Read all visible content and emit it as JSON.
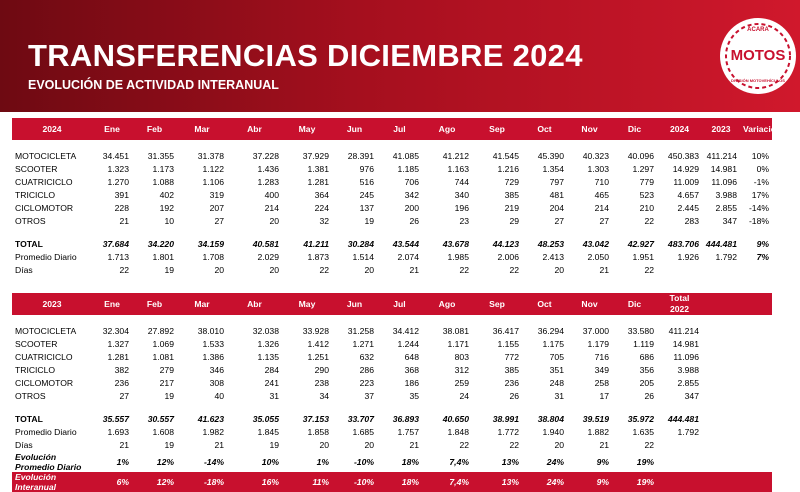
{
  "header": {
    "title": "TRANSFERENCIAS DICIEMBRE 2024",
    "subtitle": "EVOLUCIÓN DE ACTIVIDAD INTERANUAL"
  },
  "logo": {
    "top": "ACARA",
    "main": "MOTOS",
    "bottom": "DIVISIÓN MOTOVEHÍCULOS"
  },
  "table_2024": {
    "header": [
      "2024",
      "Ene",
      "Feb",
      "Mar",
      "Abr",
      "May",
      "Jun",
      "Jul",
      "Ago",
      "Sep",
      "Oct",
      "Nov",
      "Dic",
      "2024",
      "2023",
      "Variación"
    ],
    "rows": [
      [
        "MOTOCICLETA",
        "34.451",
        "31.355",
        "31.378",
        "37.228",
        "37.929",
        "28.391",
        "41.085",
        "41.212",
        "41.545",
        "45.390",
        "40.323",
        "40.096",
        "450.383",
        "411.214",
        "10%"
      ],
      [
        "SCOOTER",
        "1.323",
        "1.173",
        "1.122",
        "1.436",
        "1.381",
        "976",
        "1.185",
        "1.163",
        "1.216",
        "1.354",
        "1.303",
        "1.297",
        "14.929",
        "14.981",
        "0%"
      ],
      [
        "CUATRICICLO",
        "1.270",
        "1.088",
        "1.106",
        "1.283",
        "1.281",
        "516",
        "706",
        "744",
        "729",
        "797",
        "710",
        "779",
        "11.009",
        "11.096",
        "-1%"
      ],
      [
        "TRICICLO",
        "391",
        "402",
        "319",
        "400",
        "364",
        "245",
        "342",
        "340",
        "385",
        "481",
        "465",
        "523",
        "4.657",
        "3.988",
        "17%"
      ],
      [
        "CICLOMOTOR",
        "228",
        "192",
        "207",
        "214",
        "224",
        "137",
        "200",
        "196",
        "219",
        "204",
        "214",
        "210",
        "2.445",
        "2.855",
        "-14%"
      ],
      [
        "OTROS",
        "21",
        "10",
        "27",
        "20",
        "32",
        "19",
        "26",
        "23",
        "29",
        "27",
        "27",
        "22",
        "283",
        "347",
        "-18%"
      ],
      [
        "TOTAL",
        "37.684",
        "34.220",
        "34.159",
        "40.581",
        "41.211",
        "30.284",
        "43.544",
        "43.678",
        "44.123",
        "48.253",
        "43.042",
        "42.927",
        "483.706",
        "444.481",
        "9%"
      ],
      [
        "Promedio Diario",
        "1.713",
        "1.801",
        "1.708",
        "2.029",
        "1.873",
        "1.514",
        "2.074",
        "1.985",
        "2.006",
        "2.413",
        "2.050",
        "1.951",
        "1.926",
        "1.792",
        "7%"
      ],
      [
        "Días",
        "22",
        "19",
        "20",
        "20",
        "22",
        "20",
        "21",
        "22",
        "22",
        "20",
        "21",
        "22"
      ]
    ]
  },
  "table_2023": {
    "header": [
      "2023",
      "Ene",
      "Feb",
      "Mar",
      "Abr",
      "May",
      "Jun",
      "Jul",
      "Ago",
      "Sep",
      "Oct",
      "Nov",
      "Dic",
      "Total 2022"
    ],
    "rows": [
      [
        "MOTOCICLETA",
        "32.304",
        "27.892",
        "38.010",
        "32.038",
        "33.928",
        "31.258",
        "34.412",
        "38.081",
        "36.417",
        "36.294",
        "37.000",
        "33.580",
        "411.214"
      ],
      [
        "SCOOTER",
        "1.327",
        "1.069",
        "1.533",
        "1.326",
        "1.412",
        "1.271",
        "1.244",
        "1.171",
        "1.155",
        "1.175",
        "1.179",
        "1.119",
        "14.981"
      ],
      [
        "CUATRICICLO",
        "1.281",
        "1.081",
        "1.386",
        "1.135",
        "1.251",
        "632",
        "648",
        "803",
        "772",
        "705",
        "716",
        "686",
        "11.096"
      ],
      [
        "TRICICLO",
        "382",
        "279",
        "346",
        "284",
        "290",
        "286",
        "368",
        "312",
        "385",
        "351",
        "349",
        "356",
        "3.988"
      ],
      [
        "CICLOMOTOR",
        "236",
        "217",
        "308",
        "241",
        "238",
        "223",
        "186",
        "259",
        "236",
        "248",
        "258",
        "205",
        "2.855"
      ],
      [
        "OTROS",
        "27",
        "19",
        "40",
        "31",
        "34",
        "37",
        "35",
        "24",
        "26",
        "31",
        "17",
        "26",
        "347"
      ],
      [
        "TOTAL",
        "35.557",
        "30.557",
        "41.623",
        "35.055",
        "37.153",
        "33.707",
        "36.893",
        "40.650",
        "38.991",
        "38.804",
        "39.519",
        "35.972",
        "444.481"
      ],
      [
        "Promedio Diario",
        "1.693",
        "1.608",
        "1.982",
        "1.845",
        "1.858",
        "1.685",
        "1.757",
        "1.848",
        "1.772",
        "1.940",
        "1.882",
        "1.635",
        "1.792"
      ],
      [
        "Días",
        "21",
        "19",
        "21",
        "19",
        "20",
        "20",
        "21",
        "22",
        "22",
        "20",
        "21",
        "22"
      ],
      [
        "Evolución Promedio Diario",
        "1%",
        "12%",
        "-14%",
        "10%",
        "1%",
        "-10%",
        "18%",
        "7,4%",
        "13%",
        "24%",
        "9%",
        "19%"
      ],
      [
        "Evolución Interanual",
        "6%",
        "12%",
        "-18%",
        "16%",
        "11%",
        "-10%",
        "18%",
        "7,4%",
        "13%",
        "24%",
        "9%",
        "19%"
      ]
    ]
  }
}
